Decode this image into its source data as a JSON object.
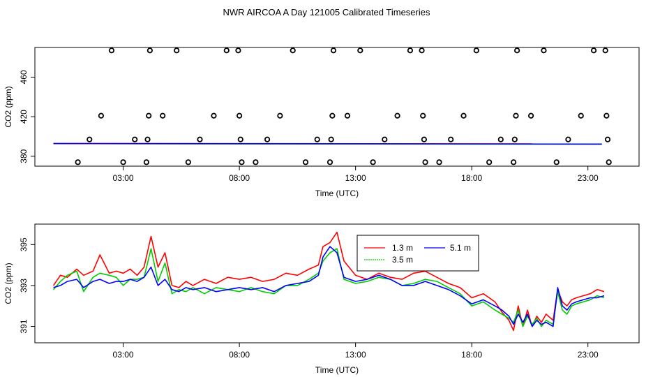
{
  "title": "NWR AIRCOA A  Day 121005  Calibrated Timeseries",
  "chart_data": [
    {
      "type": "scatter+line",
      "panel": "top",
      "xlabel": "Time (UTC)",
      "ylabel": "CO2 (ppm)",
      "xlim": [
        -0.8,
        25.2
      ],
      "ylim": [
        370,
        490
      ],
      "xticks": [
        3,
        8,
        13,
        18,
        23
      ],
      "xtick_labels": [
        "03:00",
        "08:00",
        "13:00",
        "18:00",
        "23:00"
      ],
      "yticks": [
        380,
        420,
        460
      ],
      "ytick_labels": [
        "380",
        "420",
        "460"
      ],
      "calibration_points": [
        {
          "x": 1.05,
          "y": 374
        },
        {
          "x": 1.55,
          "y": 397
        },
        {
          "x": 2.05,
          "y": 421
        },
        {
          "x": 2.5,
          "y": 487
        },
        {
          "x": 3.0,
          "y": 374
        },
        {
          "x": 3.5,
          "y": 397
        },
        {
          "x": 4.0,
          "y": 374
        },
        {
          "x": 4.05,
          "y": 397
        },
        {
          "x": 4.1,
          "y": 421
        },
        {
          "x": 4.15,
          "y": 487
        },
        {
          "x": 4.7,
          "y": 421
        },
        {
          "x": 5.3,
          "y": 487
        },
        {
          "x": 5.8,
          "y": 374
        },
        {
          "x": 6.3,
          "y": 397
        },
        {
          "x": 6.9,
          "y": 421
        },
        {
          "x": 7.45,
          "y": 487
        },
        {
          "x": 7.95,
          "y": 487
        },
        {
          "x": 8.0,
          "y": 421
        },
        {
          "x": 8.05,
          "y": 397
        },
        {
          "x": 8.1,
          "y": 374
        },
        {
          "x": 8.7,
          "y": 374
        },
        {
          "x": 9.2,
          "y": 397
        },
        {
          "x": 9.75,
          "y": 421
        },
        {
          "x": 10.3,
          "y": 487
        },
        {
          "x": 10.85,
          "y": 374
        },
        {
          "x": 11.35,
          "y": 397
        },
        {
          "x": 11.95,
          "y": 397
        },
        {
          "x": 11.9,
          "y": 374
        },
        {
          "x": 12.0,
          "y": 421
        },
        {
          "x": 12.05,
          "y": 487
        },
        {
          "x": 12.65,
          "y": 421
        },
        {
          "x": 13.2,
          "y": 487
        },
        {
          "x": 13.75,
          "y": 374
        },
        {
          "x": 14.25,
          "y": 397
        },
        {
          "x": 14.8,
          "y": 421
        },
        {
          "x": 15.35,
          "y": 487
        },
        {
          "x": 15.85,
          "y": 487
        },
        {
          "x": 15.9,
          "y": 421
        },
        {
          "x": 15.95,
          "y": 397
        },
        {
          "x": 16.0,
          "y": 374
        },
        {
          "x": 16.6,
          "y": 374
        },
        {
          "x": 17.1,
          "y": 397
        },
        {
          "x": 17.65,
          "y": 421
        },
        {
          "x": 18.2,
          "y": 487
        },
        {
          "x": 18.75,
          "y": 374
        },
        {
          "x": 19.25,
          "y": 397
        },
        {
          "x": 19.8,
          "y": 374
        },
        {
          "x": 19.85,
          "y": 397
        },
        {
          "x": 19.9,
          "y": 421
        },
        {
          "x": 19.95,
          "y": 487
        },
        {
          "x": 20.55,
          "y": 421
        },
        {
          "x": 21.1,
          "y": 487
        },
        {
          "x": 21.65,
          "y": 374
        },
        {
          "x": 22.15,
          "y": 397
        },
        {
          "x": 22.7,
          "y": 421
        },
        {
          "x": 23.25,
          "y": 487
        },
        {
          "x": 23.75,
          "y": 487
        },
        {
          "x": 23.8,
          "y": 421
        },
        {
          "x": 23.85,
          "y": 397
        },
        {
          "x": 23.9,
          "y": 374
        }
      ],
      "series": [
        {
          "name": "1.3 m",
          "color": "#ff0000",
          "x": [
            0.0,
            23.6
          ],
          "values": [
            393.0,
            392.5
          ]
        },
        {
          "name": "3.5 m",
          "color": "#00cc00",
          "x": [
            0.0,
            23.6
          ],
          "values": [
            392.8,
            392.2
          ]
        },
        {
          "name": "5.1 m",
          "color": "#0000ff",
          "x": [
            0.0,
            23.6
          ],
          "values": [
            392.8,
            392.3
          ]
        }
      ]
    },
    {
      "type": "line",
      "panel": "bottom",
      "xlabel": "Time (UTC)",
      "ylabel": "CO2 (ppm)",
      "xlim": [
        -0.8,
        25.2
      ],
      "ylim": [
        390.2,
        396.0
      ],
      "xticks": [
        3,
        8,
        13,
        18,
        23
      ],
      "xtick_labels": [
        "03:00",
        "08:00",
        "13:00",
        "18:00",
        "23:00"
      ],
      "yticks": [
        391,
        393,
        395
      ],
      "ytick_labels": [
        "391",
        "393",
        "395"
      ],
      "legend": {
        "position": "top-center",
        "entries": [
          "1.3 m",
          "5.1 m",
          "3.5 m"
        ]
      },
      "series": [
        {
          "name": "1.3 m",
          "color": "#ff0000",
          "x": [
            0.0,
            0.3,
            0.6,
            1.0,
            1.3,
            1.7,
            2.0,
            2.4,
            2.7,
            3.0,
            3.3,
            3.6,
            3.9,
            4.2,
            4.5,
            4.8,
            5.1,
            5.4,
            5.7,
            6.0,
            6.5,
            7.0,
            7.5,
            8.0,
            8.5,
            9.0,
            9.5,
            10.0,
            10.5,
            11.0,
            11.4,
            11.6,
            11.9,
            12.2,
            12.5,
            13.0,
            13.5,
            14.0,
            14.5,
            15.0,
            15.5,
            16.0,
            16.5,
            17.0,
            17.5,
            18.0,
            18.5,
            19.0,
            19.3,
            19.6,
            19.8,
            20.0,
            20.2,
            20.4,
            20.6,
            20.8,
            21.0,
            21.2,
            21.5,
            21.7,
            21.9,
            22.1,
            22.3,
            22.5,
            22.8,
            23.1,
            23.4,
            23.7
          ],
          "values": [
            393.0,
            393.5,
            393.4,
            393.8,
            393.5,
            393.7,
            394.5,
            393.6,
            393.7,
            393.6,
            393.8,
            393.5,
            393.9,
            395.4,
            393.9,
            394.6,
            393.0,
            392.9,
            393.2,
            393.0,
            393.3,
            393.1,
            393.4,
            393.3,
            393.4,
            393.2,
            393.3,
            393.6,
            393.5,
            393.8,
            394.0,
            394.9,
            395.1,
            395.6,
            394.2,
            393.5,
            393.3,
            393.6,
            393.4,
            393.3,
            393.6,
            393.7,
            393.4,
            393.1,
            392.9,
            392.4,
            392.6,
            392.2,
            391.7,
            391.3,
            390.8,
            392.0,
            391.0,
            391.8,
            391.0,
            391.5,
            391.2,
            391.6,
            391.3,
            392.8,
            392.2,
            392.0,
            392.3,
            392.4,
            392.5,
            392.6,
            392.8,
            392.7
          ]
        },
        {
          "name": "3.5 m",
          "color": "#00cc00",
          "x": [
            0.0,
            0.3,
            0.6,
            1.0,
            1.3,
            1.7,
            2.0,
            2.4,
            2.7,
            3.0,
            3.3,
            3.6,
            3.9,
            4.2,
            4.5,
            4.8,
            5.1,
            5.4,
            5.7,
            6.0,
            6.5,
            7.0,
            7.5,
            8.0,
            8.5,
            9.0,
            9.5,
            10.0,
            10.5,
            11.0,
            11.4,
            11.6,
            11.9,
            12.2,
            12.5,
            13.0,
            13.5,
            14.0,
            14.5,
            15.0,
            15.5,
            16.0,
            16.5,
            17.0,
            17.5,
            18.0,
            18.5,
            19.0,
            19.3,
            19.6,
            19.8,
            20.0,
            20.2,
            20.4,
            20.6,
            20.8,
            21.0,
            21.2,
            21.5,
            21.7,
            21.9,
            22.1,
            22.3,
            22.5,
            22.8,
            23.1,
            23.4,
            23.7
          ],
          "values": [
            392.8,
            393.2,
            393.5,
            393.7,
            392.7,
            393.4,
            393.6,
            393.5,
            393.4,
            393.0,
            393.3,
            393.3,
            393.4,
            394.8,
            393.2,
            394.1,
            392.6,
            392.8,
            392.7,
            392.9,
            392.6,
            392.9,
            392.8,
            392.7,
            392.9,
            392.7,
            392.6,
            393.0,
            393.0,
            393.3,
            393.6,
            394.2,
            394.6,
            394.8,
            393.3,
            393.1,
            393.2,
            393.4,
            393.3,
            393.0,
            393.1,
            393.3,
            393.2,
            392.9,
            392.6,
            392.0,
            392.2,
            391.8,
            391.6,
            391.4,
            391.2,
            391.8,
            391.0,
            391.5,
            391.1,
            391.4,
            391.0,
            391.3,
            391.1,
            392.7,
            391.8,
            391.6,
            392.0,
            392.1,
            392.2,
            392.3,
            392.5,
            392.4
          ]
        },
        {
          "name": "5.1 m",
          "color": "#0000ff",
          "x": [
            0.0,
            0.3,
            0.6,
            1.0,
            1.3,
            1.7,
            2.0,
            2.4,
            2.7,
            3.0,
            3.3,
            3.6,
            3.9,
            4.2,
            4.5,
            4.8,
            5.1,
            5.4,
            5.7,
            6.0,
            6.5,
            7.0,
            7.5,
            8.0,
            8.5,
            9.0,
            9.5,
            10.0,
            10.5,
            11.0,
            11.4,
            11.6,
            11.9,
            12.2,
            12.5,
            13.0,
            13.5,
            14.0,
            14.5,
            15.0,
            15.5,
            16.0,
            16.5,
            17.0,
            17.5,
            18.0,
            18.5,
            19.0,
            19.3,
            19.6,
            19.8,
            20.0,
            20.2,
            20.4,
            20.6,
            20.8,
            21.0,
            21.2,
            21.5,
            21.7,
            21.9,
            22.1,
            22.3,
            22.5,
            22.8,
            23.1,
            23.4,
            23.7
          ],
          "values": [
            392.9,
            393.0,
            393.2,
            393.3,
            392.9,
            393.2,
            393.3,
            393.1,
            393.2,
            393.2,
            393.3,
            393.2,
            393.4,
            393.9,
            393.0,
            393.3,
            392.8,
            392.7,
            392.9,
            392.8,
            392.9,
            392.7,
            392.8,
            392.9,
            392.8,
            392.9,
            392.7,
            393.0,
            393.1,
            393.2,
            393.5,
            394.4,
            394.9,
            394.6,
            393.4,
            393.2,
            393.3,
            393.5,
            393.3,
            393.0,
            393.0,
            393.2,
            393.0,
            392.8,
            392.5,
            392.1,
            392.3,
            392.0,
            391.8,
            391.5,
            391.1,
            391.6,
            391.2,
            391.6,
            391.0,
            391.3,
            391.1,
            391.2,
            391.0,
            392.9,
            392.0,
            391.8,
            392.1,
            392.2,
            392.3,
            392.4,
            392.4,
            392.5
          ]
        }
      ]
    }
  ]
}
